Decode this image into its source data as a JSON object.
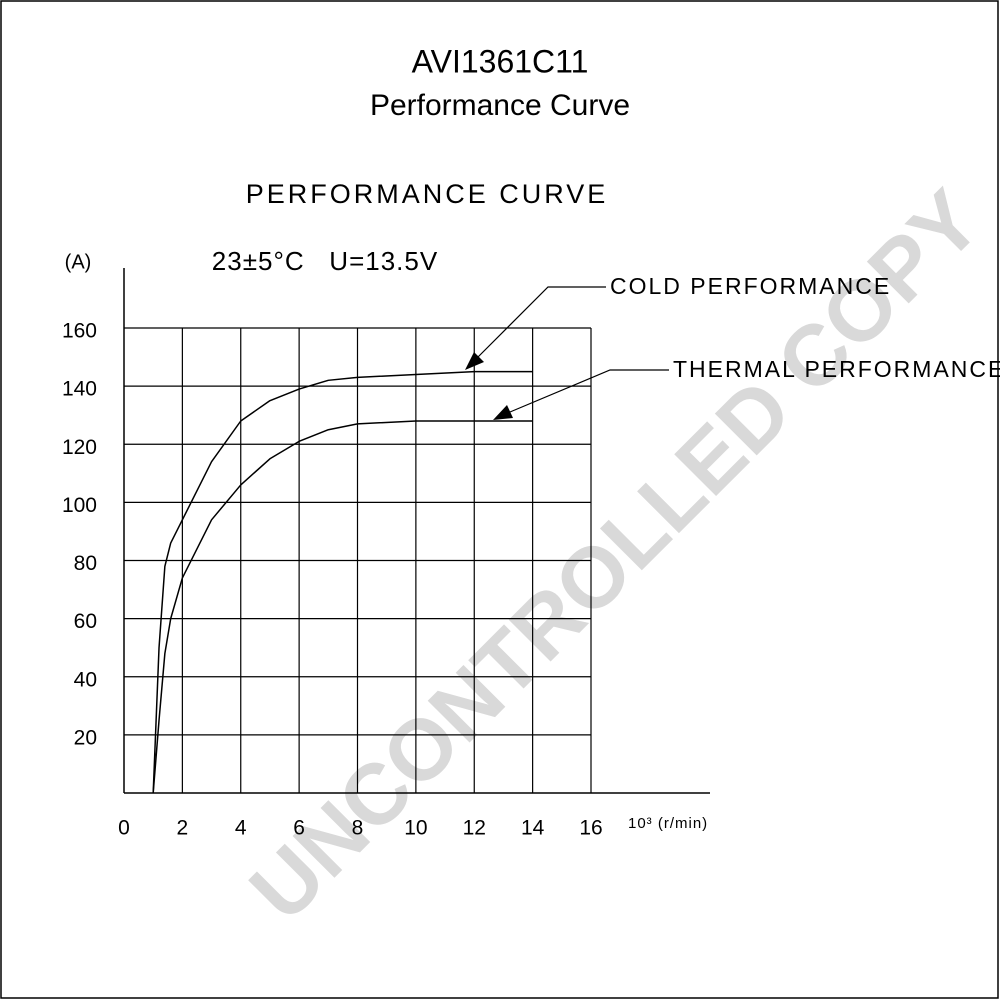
{
  "chart_data": {
    "type": "line",
    "title": "AVI1361C11",
    "subtitle": "Performance Curve",
    "heading": "PERFORMANCE CURVE",
    "condition": "23±5°C   U=13.5V",
    "y_label": "(A)",
    "x_label": "10³ (r/min)",
    "watermark": "UNCONTROLLED COPY",
    "x": [
      1,
      1.2,
      1.4,
      1.6,
      2,
      3,
      4,
      5,
      6,
      7,
      8,
      10,
      12,
      14
    ],
    "series": [
      {
        "name": "COLD PERFORMANCE",
        "color": "#000000",
        "values": [
          0,
          50,
          78,
          86,
          94,
          114,
          128,
          135,
          139,
          142,
          143,
          144,
          145,
          145
        ]
      },
      {
        "name": "THERMAL PERFORMANCE",
        "color": "#000000",
        "values": [
          0,
          25,
          48,
          60,
          74,
          94,
          106,
          115,
          121,
          125,
          127,
          128,
          128,
          128
        ]
      }
    ],
    "xlim": [
      0,
      16
    ],
    "xticks": [
      0,
      2,
      4,
      6,
      8,
      10,
      12,
      14,
      16
    ],
    "ylim": [
      0,
      160
    ],
    "yticks": [
      20,
      40,
      60,
      80,
      100,
      120,
      140,
      160
    ],
    "grid": true
  }
}
